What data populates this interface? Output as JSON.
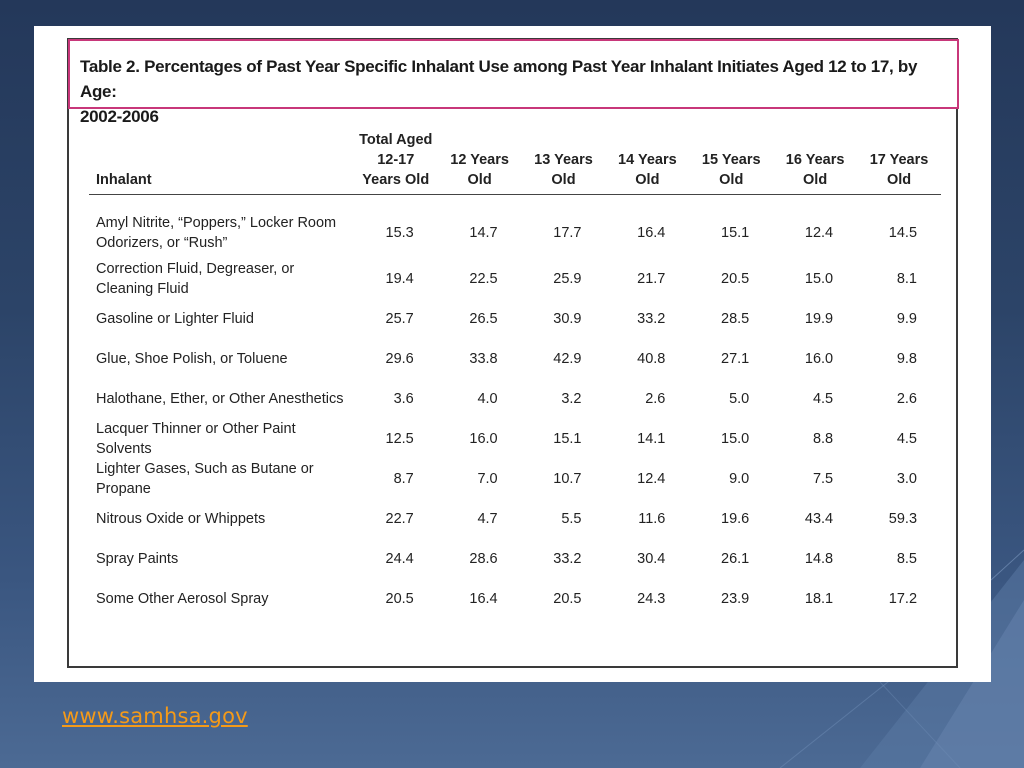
{
  "table": {
    "title_line1": "Table 2. Percentages of Past Year Specific Inhalant Use among Past Year Inhalant Initiates Aged 12 to 17, by Age:",
    "title_line2": "2002-2006",
    "columns": [
      {
        "lines": [
          "Inhalant"
        ]
      },
      {
        "lines": [
          "Total Aged",
          "12-17",
          "Years Old"
        ]
      },
      {
        "lines": [
          "12 Years",
          "Old"
        ]
      },
      {
        "lines": [
          "13 Years",
          "Old"
        ]
      },
      {
        "lines": [
          "14 Years",
          "Old"
        ]
      },
      {
        "lines": [
          "15 Years",
          "Old"
        ]
      },
      {
        "lines": [
          "16 Years",
          "Old"
        ]
      },
      {
        "lines": [
          "17 Years",
          "Old"
        ]
      }
    ],
    "rows": [
      {
        "label": [
          "Amyl Nitrite, “Poppers,” Locker Room",
          "Odorizers, or “Rush”"
        ],
        "values": [
          "15.3",
          "14.7",
          "17.7",
          "16.4",
          "15.1",
          "12.4",
          "14.5"
        ]
      },
      {
        "label": [
          "Correction Fluid, Degreaser, or",
          "Cleaning Fluid"
        ],
        "values": [
          "19.4",
          "22.5",
          "25.9",
          "21.7",
          "20.5",
          "15.0",
          "8.1"
        ]
      },
      {
        "label": [
          "Gasoline or Lighter Fluid"
        ],
        "values": [
          "25.7",
          "26.5",
          "30.9",
          "33.2",
          "28.5",
          "19.9",
          "9.9"
        ]
      },
      {
        "label": [
          "Glue, Shoe Polish, or Toluene"
        ],
        "values": [
          "29.6",
          "33.8",
          "42.9",
          "40.8",
          "27.1",
          "16.0",
          "9.8"
        ]
      },
      {
        "label": [
          "Halothane, Ether, or Other Anesthetics"
        ],
        "values": [
          "3.6",
          "4.0",
          "3.2",
          "2.6",
          "5.0",
          "4.5",
          "2.6"
        ]
      },
      {
        "label": [
          "Lacquer Thinner or Other Paint",
          "Solvents"
        ],
        "values": [
          "12.5",
          "16.0",
          "15.1",
          "14.1",
          "15.0",
          "8.8",
          "4.5"
        ]
      },
      {
        "label": [
          "Lighter Gases, Such as Butane or",
          "Propane"
        ],
        "values": [
          "8.7",
          "7.0",
          "10.7",
          "12.4",
          "9.0",
          "7.5",
          "3.0"
        ]
      },
      {
        "label": [
          "Nitrous Oxide or Whippets"
        ],
        "values": [
          "22.7",
          "4.7",
          "5.5",
          "11.6",
          "19.6",
          "43.4",
          "59.3"
        ]
      },
      {
        "label": [
          "Spray Paints"
        ],
        "values": [
          "24.4",
          "28.6",
          "33.2",
          "30.4",
          "26.1",
          "14.8",
          "8.5"
        ]
      },
      {
        "label": [
          "Some Other Aerosol Spray"
        ],
        "values": [
          "20.5",
          "16.4",
          "20.5",
          "24.3",
          "23.9",
          "18.1",
          "17.2"
        ]
      }
    ]
  },
  "source_link": "www.samhsa.gov",
  "colors": {
    "background": "#2c4468",
    "caption_border": "#c8377a",
    "link": "#f59a18"
  }
}
